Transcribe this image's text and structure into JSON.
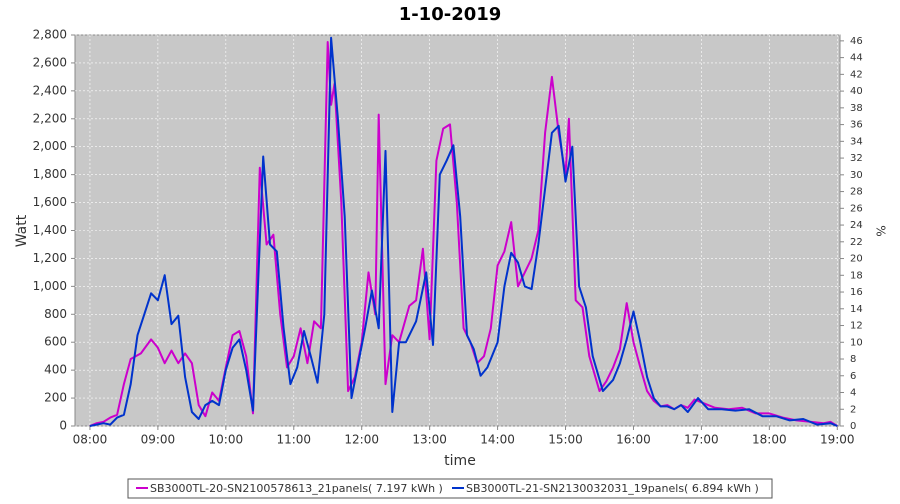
{
  "chart_data": {
    "type": "line",
    "title": "1-10-2019",
    "xlabel": "time",
    "ylabel": "Watt",
    "y2label": "%",
    "xlim": [
      7.78,
      19.04
    ],
    "xticks": [
      {
        "value": 8,
        "label": "08:00"
      },
      {
        "value": 9,
        "label": "09:00"
      },
      {
        "value": 10,
        "label": "10:00"
      },
      {
        "value": 11,
        "label": "11:00"
      },
      {
        "value": 12,
        "label": "12:00"
      },
      {
        "value": 13,
        "label": "13:00"
      },
      {
        "value": 14,
        "label": "14:00"
      },
      {
        "value": 15,
        "label": "15:00"
      },
      {
        "value": 16,
        "label": "16:00"
      },
      {
        "value": 17,
        "label": "17:00"
      },
      {
        "value": 18,
        "label": "18:00"
      },
      {
        "value": 19,
        "label": "19:00"
      }
    ],
    "ylim": [
      0,
      2800
    ],
    "yticks": [
      0,
      200,
      400,
      600,
      800,
      {
        "value": 1000,
        "label": "1,000"
      },
      {
        "value": 1200,
        "label": "1,200"
      },
      {
        "value": 1400,
        "label": "1,400"
      },
      {
        "value": 1600,
        "label": "1,600"
      },
      {
        "value": 1800,
        "label": "1,800"
      },
      {
        "value": 2000,
        "label": "2,000"
      },
      {
        "value": 2200,
        "label": "2,200"
      },
      {
        "value": 2400,
        "label": "2,400"
      },
      {
        "value": 2600,
        "label": "2,600"
      },
      {
        "value": 2800,
        "label": "2,800"
      }
    ],
    "y2lim": [
      0,
      46.7
    ],
    "y2ticks": [
      0,
      2,
      4,
      6,
      8,
      10,
      12,
      14,
      16,
      18,
      20,
      22,
      24,
      26,
      28,
      30,
      32,
      34,
      36,
      38,
      40,
      42,
      44,
      46
    ],
    "grid": true,
    "series": [
      {
        "name": "SB3000TL-20-SN2100578613_21panels( 7.197 kWh )",
        "color": "#cc00cc",
        "x": [
          8.0,
          8.1,
          8.2,
          8.3,
          8.4,
          8.5,
          8.6,
          8.75,
          8.9,
          9.0,
          9.1,
          9.2,
          9.3,
          9.4,
          9.5,
          9.6,
          9.7,
          9.8,
          9.9,
          10.0,
          10.1,
          10.2,
          10.3,
          10.4,
          10.5,
          10.6,
          10.7,
          10.8,
          10.9,
          11.0,
          11.1,
          11.2,
          11.3,
          11.4,
          11.5,
          11.55,
          11.6,
          11.7,
          11.8,
          11.9,
          12.0,
          12.1,
          12.2,
          12.25,
          12.35,
          12.45,
          12.55,
          12.7,
          12.8,
          12.9,
          13.0,
          13.1,
          13.2,
          13.3,
          13.4,
          13.5,
          13.6,
          13.7,
          13.8,
          13.9,
          14.0,
          14.1,
          14.2,
          14.3,
          14.4,
          14.5,
          14.6,
          14.7,
          14.8,
          14.9,
          15.0,
          15.05,
          15.15,
          15.25,
          15.35,
          15.5,
          15.6,
          15.7,
          15.8,
          15.9,
          16.0,
          16.1,
          16.2,
          16.3,
          16.4,
          16.5,
          16.6,
          16.7,
          16.8,
          16.9,
          17.0,
          17.1,
          17.2,
          17.4,
          17.6,
          17.8,
          18.0,
          18.2,
          18.4,
          18.6,
          18.8,
          18.9,
          19.0
        ],
        "values": [
          0,
          20,
          30,
          60,
          80,
          300,
          480,
          520,
          620,
          560,
          450,
          540,
          450,
          520,
          450,
          150,
          70,
          240,
          180,
          420,
          650,
          680,
          500,
          90,
          1850,
          1300,
          1370,
          800,
          420,
          500,
          700,
          450,
          750,
          700,
          2750,
          2300,
          2450,
          1600,
          250,
          350,
          600,
          1100,
          800,
          2230,
          300,
          650,
          600,
          860,
          900,
          1270,
          620,
          1900,
          2130,
          2160,
          1600,
          700,
          600,
          450,
          500,
          700,
          1150,
          1250,
          1460,
          1000,
          1100,
          1200,
          1400,
          2100,
          2500,
          2100,
          1800,
          2200,
          900,
          850,
          500,
          250,
          320,
          420,
          550,
          880,
          600,
          420,
          250,
          180,
          140,
          150,
          120,
          150,
          130,
          190,
          170,
          150,
          130,
          120,
          130,
          90,
          90,
          60,
          40,
          30,
          20,
          30,
          0
        ]
      },
      {
        "name": "SB3000TL-21-SN2130032031_19panels( 6.894 kWh )",
        "color": "#0033cc",
        "x": [
          8.0,
          8.2,
          8.3,
          8.4,
          8.5,
          8.6,
          8.7,
          8.8,
          8.9,
          9.0,
          9.1,
          9.2,
          9.3,
          9.4,
          9.5,
          9.6,
          9.7,
          9.8,
          9.9,
          10.0,
          10.1,
          10.2,
          10.3,
          10.4,
          10.55,
          10.65,
          10.75,
          10.85,
          10.95,
          11.05,
          11.15,
          11.25,
          11.35,
          11.45,
          11.55,
          11.65,
          11.75,
          11.85,
          11.95,
          12.05,
          12.15,
          12.25,
          12.35,
          12.45,
          12.55,
          12.65,
          12.8,
          12.95,
          13.05,
          13.15,
          13.25,
          13.35,
          13.45,
          13.55,
          13.65,
          13.75,
          13.85,
          14.0,
          14.1,
          14.2,
          14.3,
          14.4,
          14.5,
          14.6,
          14.8,
          14.9,
          15.0,
          15.1,
          15.2,
          15.3,
          15.4,
          15.55,
          15.7,
          15.8,
          15.9,
          16.0,
          16.1,
          16.2,
          16.3,
          16.4,
          16.5,
          16.6,
          16.7,
          16.8,
          16.95,
          17.1,
          17.3,
          17.5,
          17.7,
          17.9,
          18.1,
          18.3,
          18.5,
          18.7,
          18.9,
          19.0
        ],
        "values": [
          0,
          20,
          10,
          60,
          80,
          300,
          650,
          800,
          950,
          900,
          1080,
          730,
          790,
          350,
          100,
          50,
          150,
          180,
          150,
          400,
          560,
          620,
          400,
          110,
          1930,
          1300,
          1250,
          700,
          300,
          420,
          680,
          500,
          310,
          800,
          2780,
          2200,
          1500,
          200,
          450,
          700,
          970,
          700,
          1970,
          100,
          600,
          600,
          750,
          1100,
          580,
          1800,
          1900,
          2010,
          1500,
          650,
          550,
          360,
          420,
          600,
          1000,
          1240,
          1170,
          1000,
          980,
          1300,
          2100,
          2150,
          1750,
          2000,
          1000,
          850,
          500,
          250,
          330,
          450,
          620,
          820,
          600,
          350,
          200,
          140,
          140,
          120,
          150,
          100,
          200,
          120,
          120,
          110,
          120,
          70,
          70,
          40,
          50,
          10,
          20,
          0
        ]
      }
    ]
  }
}
